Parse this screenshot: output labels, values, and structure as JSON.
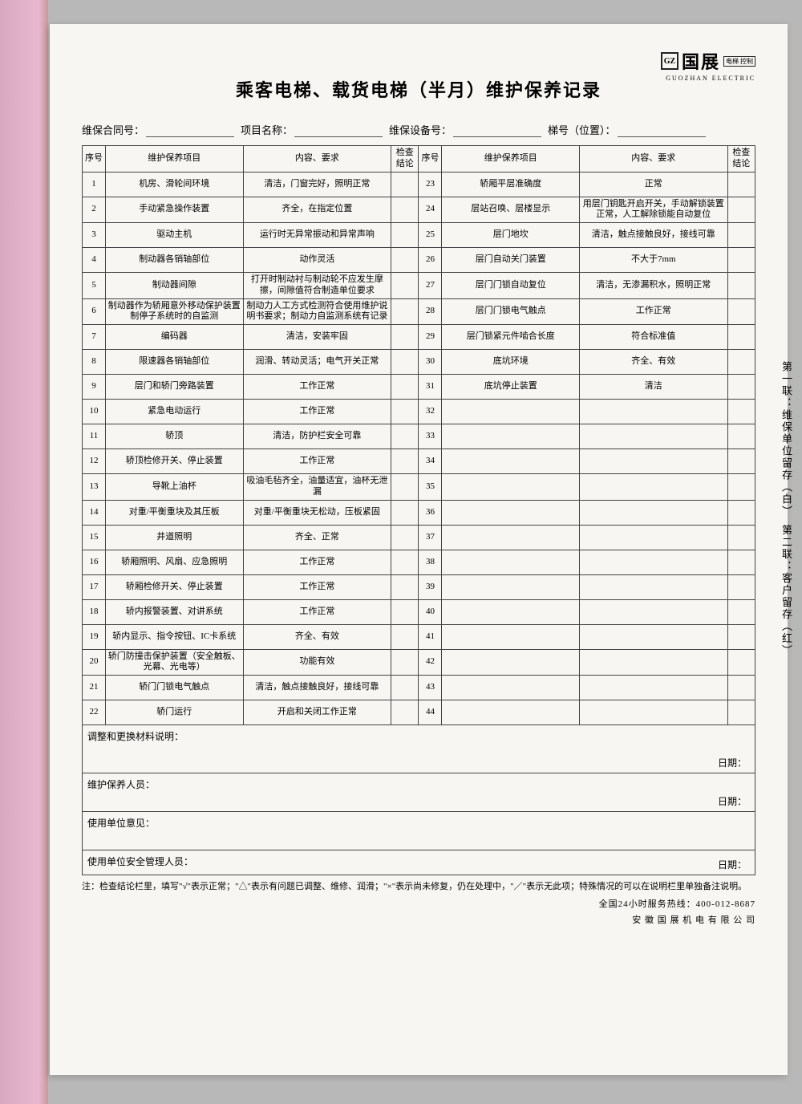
{
  "logo": {
    "brand": "国展",
    "box": "电梯\n控制",
    "sub": "GUOZHAN ELECTRIC"
  },
  "title": "乘客电梯、载货电梯（半月）维护保养记录",
  "header": {
    "contract": "维保合同号：",
    "project": "项目名称：",
    "device": "维保设备号：",
    "position": "梯号（位置）："
  },
  "columns": {
    "seq": "序号",
    "item": "维护保养项目",
    "req": "内容、要求",
    "chk": "检查结论"
  },
  "rows_left": [
    {
      "n": "1",
      "item": "机房、滑轮间环境",
      "req": "清洁，门窗完好，照明正常"
    },
    {
      "n": "2",
      "item": "手动紧急操作装置",
      "req": "齐全，在指定位置"
    },
    {
      "n": "3",
      "item": "驱动主机",
      "req": "运行时无异常振动和异常声响"
    },
    {
      "n": "4",
      "item": "制动器各销轴部位",
      "req": "动作灵活"
    },
    {
      "n": "5",
      "item": "制动器间隙",
      "req": "打开时制动衬与制动轮不应发生摩擦，间隙值符合制造单位要求"
    },
    {
      "n": "6",
      "item": "制动器作为轿厢意外移动保护装置制停子系统时的自监测",
      "req": "制动力人工方式检测符合使用维护说明书要求；制动力自监测系统有记录"
    },
    {
      "n": "7",
      "item": "编码器",
      "req": "清洁，安装牢固"
    },
    {
      "n": "8",
      "item": "限速器各销轴部位",
      "req": "润滑、转动灵活；电气开关正常"
    },
    {
      "n": "9",
      "item": "层门和轿门旁路装置",
      "req": "工作正常"
    },
    {
      "n": "10",
      "item": "紧急电动运行",
      "req": "工作正常"
    },
    {
      "n": "11",
      "item": "轿顶",
      "req": "清洁，防护栏安全可靠"
    },
    {
      "n": "12",
      "item": "轿顶检修开关、停止装置",
      "req": "工作正常"
    },
    {
      "n": "13",
      "item": "导靴上油杯",
      "req": "吸油毛毡齐全，油量适宜，油杯无泄漏"
    },
    {
      "n": "14",
      "item": "对重/平衡重块及其压板",
      "req": "对重/平衡重块无松动，压板紧固"
    },
    {
      "n": "15",
      "item": "井道照明",
      "req": "齐全、正常"
    },
    {
      "n": "16",
      "item": "轿厢照明、风扇、应急照明",
      "req": "工作正常"
    },
    {
      "n": "17",
      "item": "轿厢检修开关、停止装置",
      "req": "工作正常"
    },
    {
      "n": "18",
      "item": "轿内报警装置、对讲系统",
      "req": "工作正常"
    },
    {
      "n": "19",
      "item": "轿内显示、指令按钮、IC卡系统",
      "req": "齐全、有效"
    },
    {
      "n": "20",
      "item": "轿门防撞击保护装置（安全触板、光幕、光电等）",
      "req": "功能有效"
    },
    {
      "n": "21",
      "item": "轿门门锁电气触点",
      "req": "清洁，触点接触良好，接线可靠"
    },
    {
      "n": "22",
      "item": "轿门运行",
      "req": "开启和关闭工作正常"
    }
  ],
  "rows_right": [
    {
      "n": "23",
      "item": "轿厢平层准确度",
      "req": "正常"
    },
    {
      "n": "24",
      "item": "层站召唤、层楼显示",
      "req": "用层门钥匙开启开关，手动解锁装置正常，人工解除锁能自动复位"
    },
    {
      "n": "25",
      "item": "层门地坎",
      "req": "清洁，触点接触良好，接线可靠"
    },
    {
      "n": "26",
      "item": "层门自动关门装置",
      "req": "不大于7mm"
    },
    {
      "n": "27",
      "item": "层门门锁自动复位",
      "req": "清洁，无渗漏积水，照明正常"
    },
    {
      "n": "28",
      "item": "层门门锁电气触点",
      "req": "工作正常"
    },
    {
      "n": "29",
      "item": "层门锁紧元件啮合长度",
      "req": "符合标准值"
    },
    {
      "n": "30",
      "item": "底坑环境",
      "req": "齐全、有效"
    },
    {
      "n": "31",
      "item": "底坑停止装置",
      "req": "清洁"
    },
    {
      "n": "32",
      "item": "",
      "req": ""
    },
    {
      "n": "33",
      "item": "",
      "req": ""
    },
    {
      "n": "34",
      "item": "",
      "req": ""
    },
    {
      "n": "35",
      "item": "",
      "req": ""
    },
    {
      "n": "36",
      "item": "",
      "req": ""
    },
    {
      "n": "37",
      "item": "",
      "req": ""
    },
    {
      "n": "38",
      "item": "",
      "req": ""
    },
    {
      "n": "39",
      "item": "",
      "req": ""
    },
    {
      "n": "40",
      "item": "",
      "req": ""
    },
    {
      "n": "41",
      "item": "",
      "req": ""
    },
    {
      "n": "42",
      "item": "",
      "req": ""
    },
    {
      "n": "43",
      "item": "",
      "req": ""
    },
    {
      "n": "44",
      "item": "",
      "req": ""
    }
  ],
  "notes": {
    "adjust": "调整和更换材料说明：",
    "staff": "维护保养人员：",
    "opinion": "使用单位意见：",
    "manager": "使用单位安全管理人员：",
    "date": "日期："
  },
  "footnote": "注：检查结论栏里，填写\"√\"表示正常；\"△\"表示有问题已调整、维修、润滑；\"×\"表示尚未修复，仍在处理中，\"／\"表示无此项；特殊情况的可以在说明栏里单独备注说明。",
  "hotline": "全国24小时服务热线：400-012-8687",
  "company": "安 徽 国 展 机 电 有 限 公 司",
  "side": "第一联：维保单位留存（白）　第二联：客户留存（红）"
}
